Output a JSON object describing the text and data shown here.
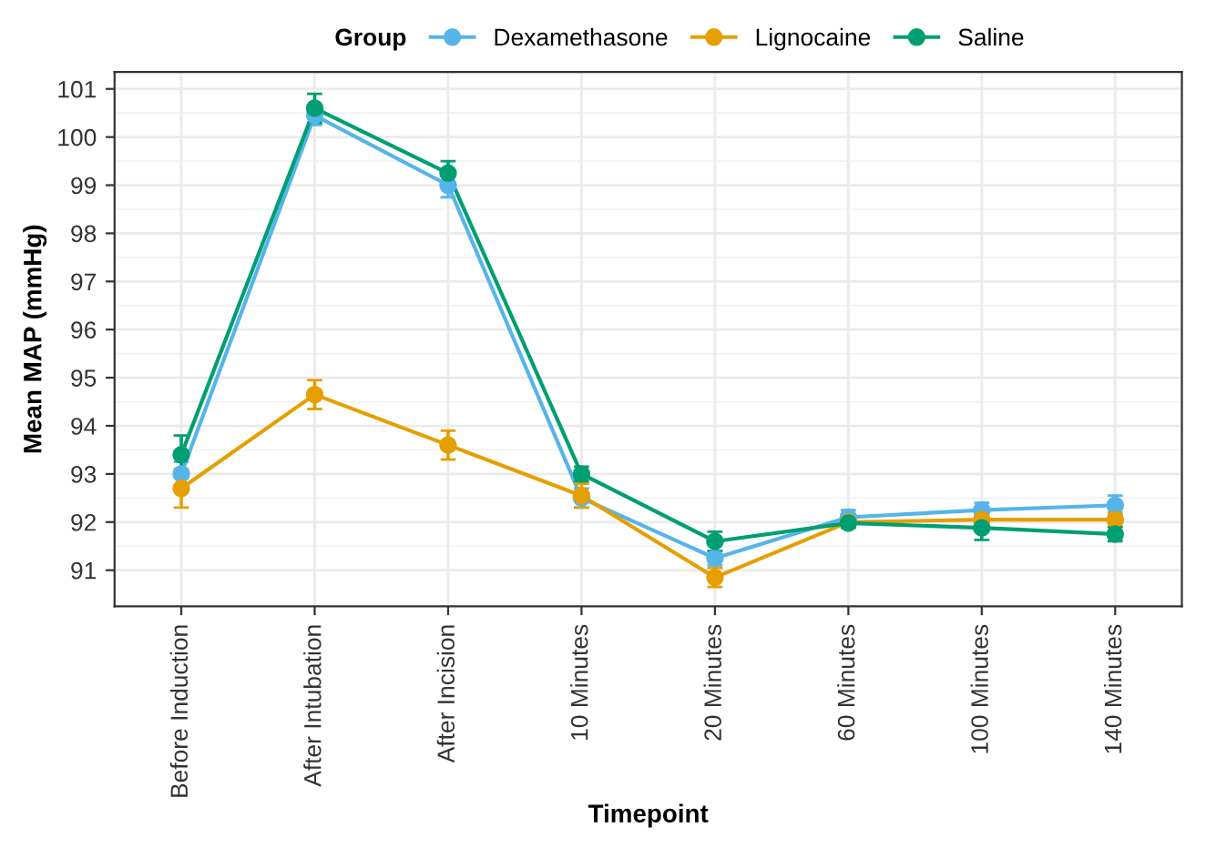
{
  "chart_data": {
    "type": "line",
    "xlabel": "Timepoint",
    "ylabel": "Mean MAP (mmHg)",
    "legend_title": "Group",
    "legend": "top",
    "grid": true,
    "marker": "circle",
    "line_style": "solid",
    "categories": [
      "Before Induction",
      "After Intubation",
      "After Incision",
      "10 Minutes",
      "20 Minutes",
      "60 Minutes",
      "100 Minutes",
      "140 Minutes"
    ],
    "ylim": [
      90.25,
      101.35
    ],
    "yticks": [
      91,
      92,
      93,
      94,
      95,
      96,
      97,
      98,
      99,
      100,
      101
    ],
    "series": [
      {
        "name": "Dexamethasone",
        "color": "#56b4e9",
        "values": [
          93.0,
          100.45,
          99.0,
          92.5,
          91.25,
          92.1,
          92.25,
          92.35
        ],
        "errors": [
          0.25,
          0.2,
          0.25,
          0.2,
          0.15,
          0.15,
          0.15,
          0.2
        ]
      },
      {
        "name": "Lignocaine",
        "color": "#e69f00",
        "values": [
          92.7,
          94.65,
          93.6,
          92.55,
          90.85,
          92.0,
          92.05,
          92.05
        ],
        "errors": [
          0.4,
          0.3,
          0.3,
          0.25,
          0.2,
          0.1,
          0.15,
          0.15
        ]
      },
      {
        "name": "Saline",
        "color": "#009e73",
        "values": [
          93.4,
          100.6,
          99.25,
          93.0,
          91.6,
          91.98,
          91.88,
          91.75
        ],
        "errors": [
          0.4,
          0.3,
          0.25,
          0.15,
          0.2,
          0.1,
          0.25,
          0.15
        ]
      }
    ]
  }
}
